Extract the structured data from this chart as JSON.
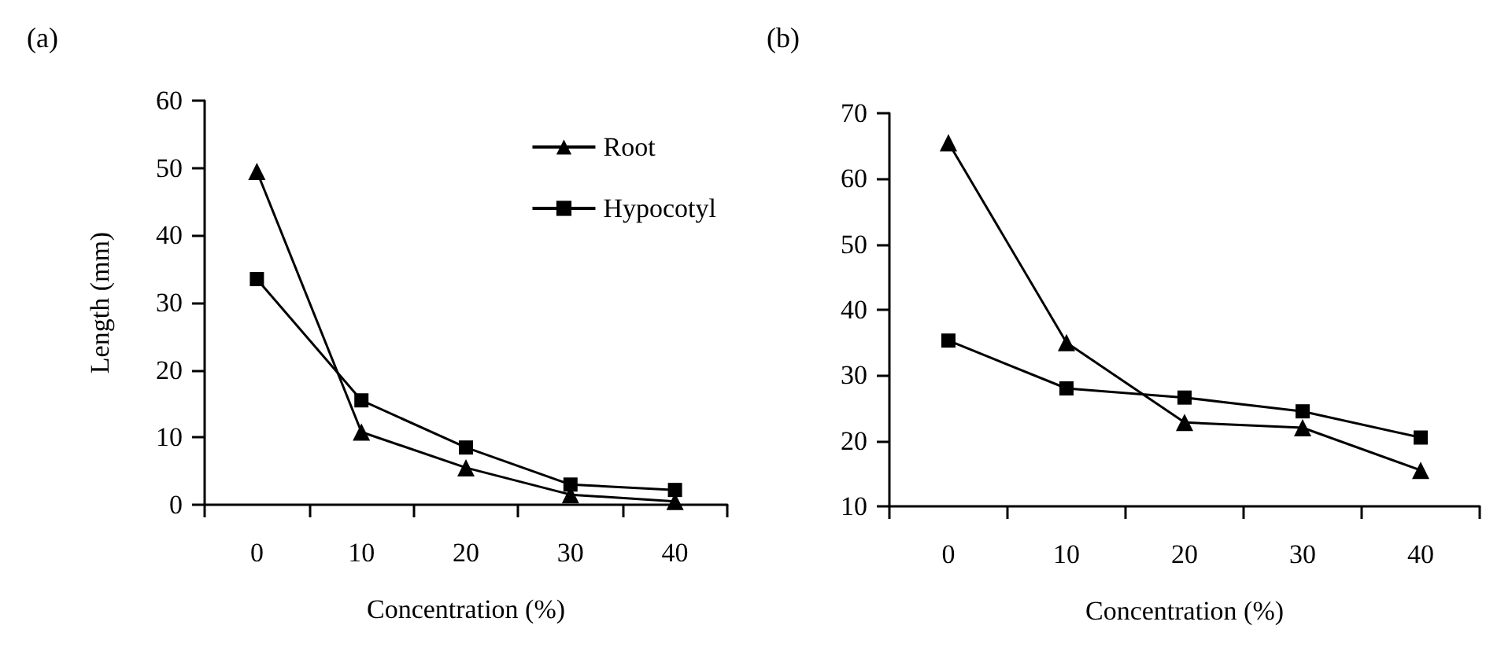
{
  "chart_data": [
    {
      "type": "line",
      "title": "(a)",
      "xlabel": "Concentration (%)",
      "ylabel": "Length (mm)",
      "categories": [
        "0",
        "10",
        "20",
        "30",
        "40"
      ],
      "series": [
        {
          "name": "Root",
          "color": "#000000",
          "marker": "triangle",
          "values": [
            49.5,
            10.8,
            5.5,
            1.5,
            0.5
          ]
        },
        {
          "name": "Hypocotyl",
          "color": "#000000",
          "marker": "square",
          "values": [
            33.5,
            15.5,
            8.5,
            3,
            2.2
          ]
        }
      ],
      "ylim": [
        0,
        60
      ],
      "yticks": [
        0,
        10,
        20,
        30,
        40,
        50,
        60
      ],
      "grid": false,
      "legend": "top right",
      "line_style": "solid"
    },
    {
      "type": "line",
      "title": "(b)",
      "xlabel": "Concentration (%)",
      "categories": [
        "0",
        "10",
        "20",
        "30",
        "40"
      ],
      "series": [
        {
          "color": "#000000",
          "marker": "triangle",
          "values": [
            65.5,
            35,
            22.8,
            22,
            15.5
          ]
        },
        {
          "color": "#000000",
          "marker": "square",
          "values": [
            35.3,
            28,
            26.6,
            24.5,
            20.5
          ]
        }
      ],
      "ylim": [
        10,
        70
      ],
      "yticks": [
        10,
        20,
        30,
        40,
        50,
        60,
        70
      ],
      "grid": false,
      "legend": false,
      "line_style": "solid"
    }
  ]
}
